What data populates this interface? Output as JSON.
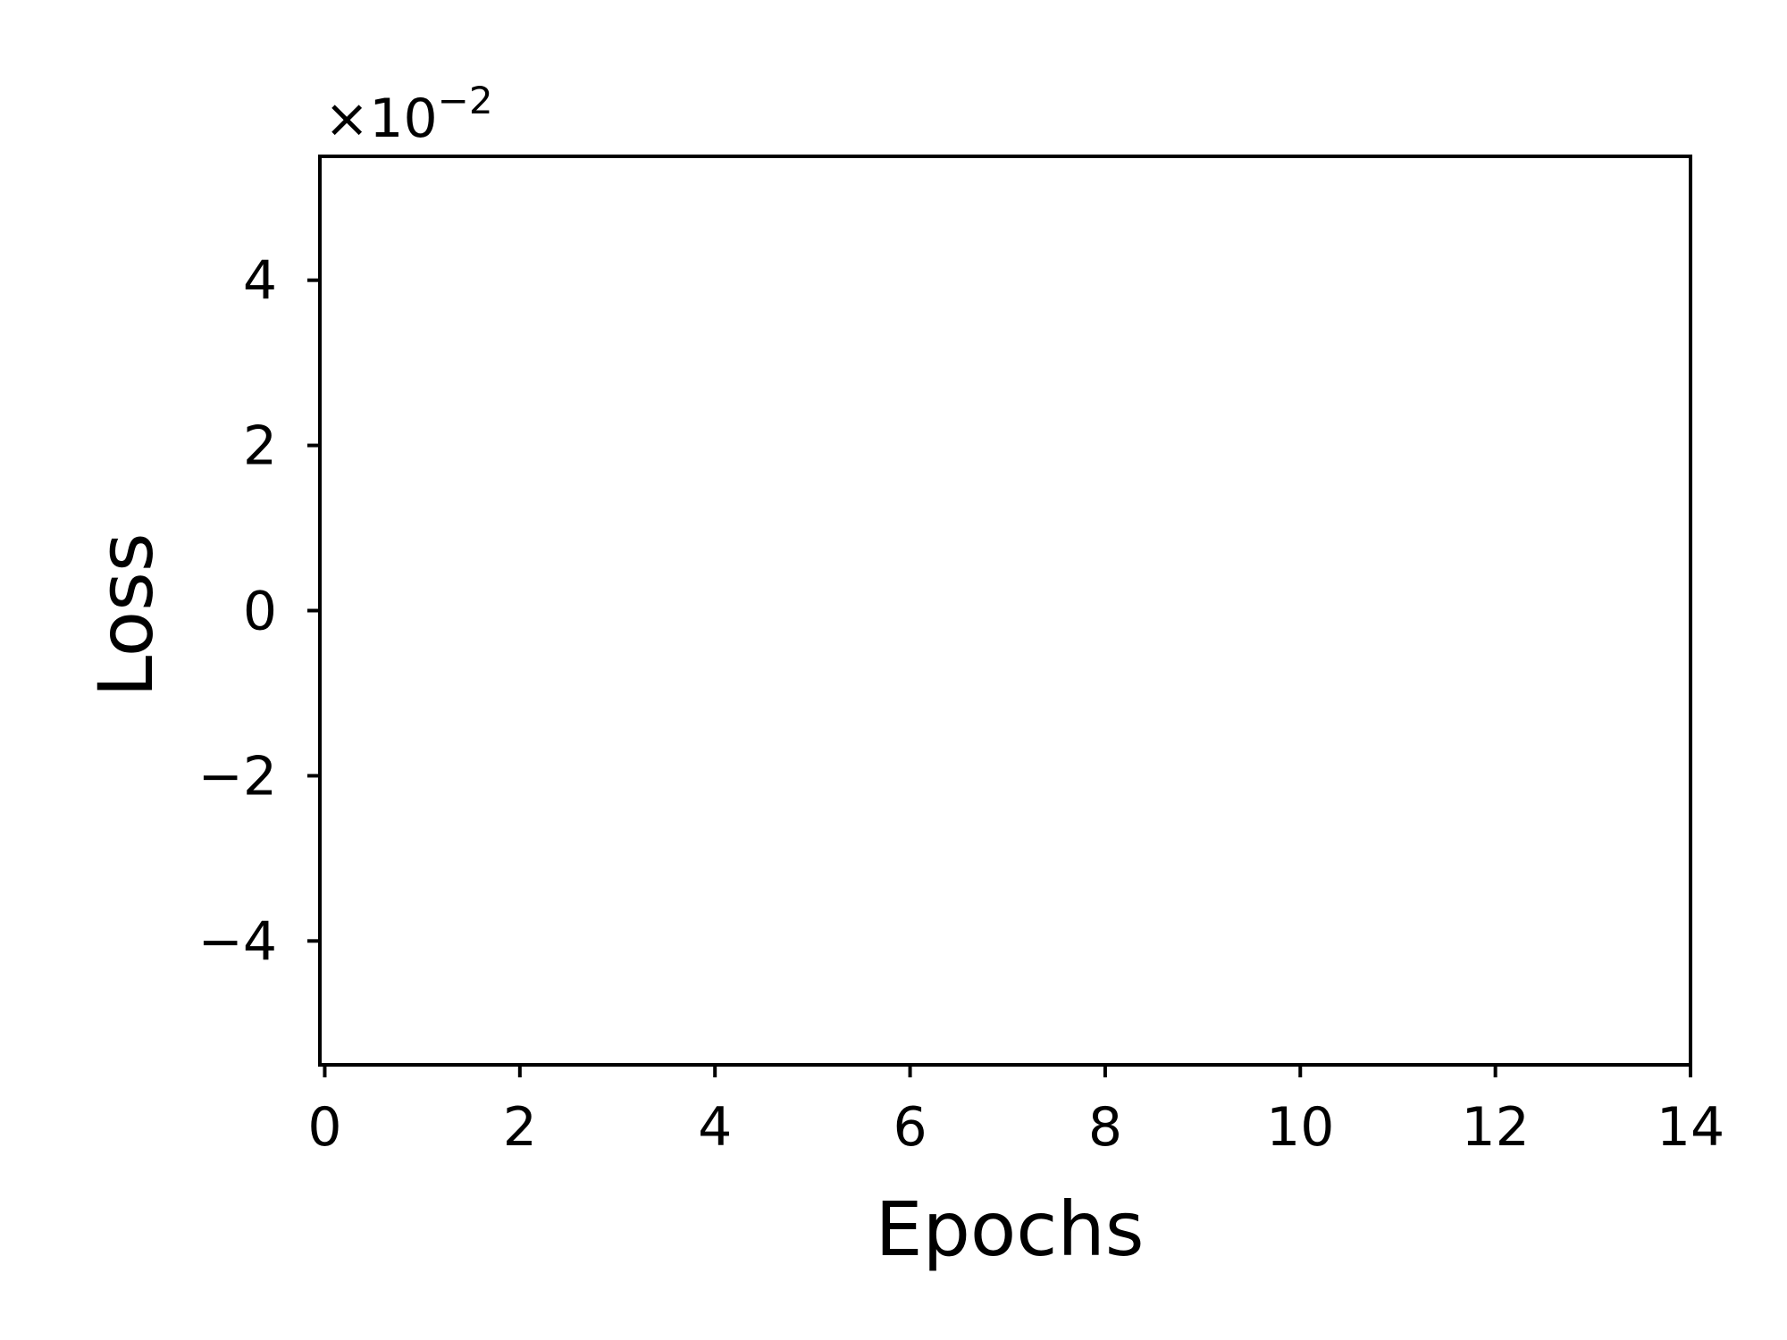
{
  "chart_data": {
    "type": "line",
    "title": "",
    "xlabel": "Epochs",
    "ylabel": "Loss",
    "xlim": [
      -0.05,
      14
    ],
    "ylim": [
      -0.055,
      0.055
    ],
    "x_ticks": [
      0,
      2,
      4,
      6,
      8,
      10,
      12,
      14
    ],
    "x_tick_labels": [
      "0",
      "2",
      "4",
      "6",
      "8",
      "10",
      "12",
      "14"
    ],
    "y_ticks": [
      -0.04,
      -0.02,
      0,
      0.02,
      0.04
    ],
    "y_tick_labels": [
      "−4",
      "−2",
      "0",
      "2",
      "4"
    ],
    "y_offset_text": {
      "base": "×10",
      "exponent": "−2"
    },
    "grid": false,
    "series": []
  }
}
